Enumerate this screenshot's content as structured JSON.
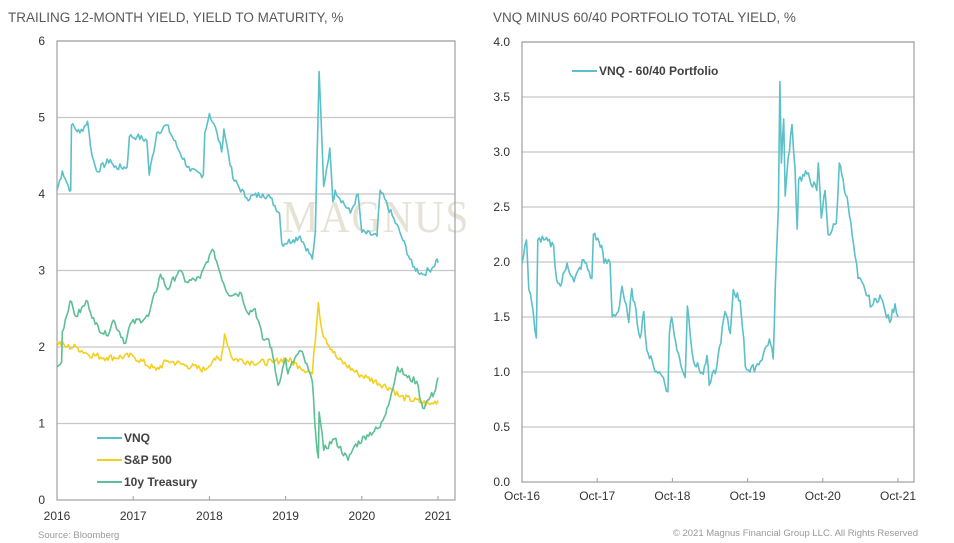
{
  "watermark": "MAGNUS",
  "source": "Source: Bloomberg",
  "copyright": "© 2021 Magnus Financial Group LLC. All Rights Reserved",
  "colors": {
    "vnq": "#5bc0c8",
    "sp500": "#f5cf1f",
    "treasury": "#5dbf94",
    "spread": "#5bc0c8",
    "grid": "#c8c8c8",
    "axis": "#a0a0a0"
  },
  "chart_data": [
    {
      "type": "line",
      "title": "TRAILING 12-MONTH YIELD, YIELD TO MATURITY, %",
      "xlabel": "",
      "ylabel": "",
      "xlim": [
        2016,
        2021.22
      ],
      "ylim": [
        0,
        6
      ],
      "xticks": [
        2016,
        2017,
        2018,
        2019,
        2020,
        2021
      ],
      "xtick_labels": [
        "2016",
        "2017",
        "2018",
        "2019",
        "2020",
        "2021"
      ],
      "yticks": [
        0,
        1,
        2,
        3,
        4,
        5,
        6
      ],
      "ytick_labels": [
        "0",
        "1",
        "2",
        "3",
        "4",
        "5",
        "6"
      ],
      "grid": true,
      "legend_position": "bottom-left",
      "series": [
        {
          "name": "VNQ",
          "color_key": "vnq",
          "x": [
            2016.0,
            2016.07,
            2016.15,
            2016.18,
            2016.19,
            2016.3,
            2016.4,
            2016.46,
            2016.52,
            2016.7,
            2016.75,
            2016.92,
            2016.95,
            2017.05,
            2017.18,
            2017.21,
            2017.31,
            2017.44,
            2017.61,
            2017.75,
            2017.92,
            2017.94,
            2018.0,
            2018.1,
            2018.16,
            2018.19,
            2018.31,
            2018.49,
            2018.7,
            2018.8,
            2018.92,
            2018.95,
            2019.1,
            2019.19,
            2019.35,
            2019.39,
            2019.44,
            2019.48,
            2019.5,
            2019.58,
            2019.62,
            2019.65,
            2019.85,
            2019.95,
            2020.0,
            2020.2,
            2020.24,
            2020.5,
            2020.67,
            2020.8,
            2020.94,
            2020.99,
            2021.0
          ],
          "y": [
            4.05,
            4.3,
            4.1,
            4.05,
            4.9,
            4.8,
            4.95,
            4.5,
            4.3,
            4.45,
            4.35,
            4.35,
            4.75,
            4.75,
            4.7,
            4.25,
            4.8,
            4.9,
            4.55,
            4.3,
            4.25,
            4.8,
            5.05,
            4.8,
            4.55,
            4.85,
            4.2,
            3.95,
            4.0,
            3.95,
            3.75,
            3.35,
            3.4,
            3.45,
            3.15,
            3.5,
            5.6,
            4.6,
            4.1,
            4.6,
            3.9,
            4.05,
            3.75,
            4.0,
            3.5,
            3.45,
            4.05,
            3.5,
            3.05,
            2.95,
            3.05,
            3.15,
            3.1
          ]
        },
        {
          "name": "S&P 500",
          "color_key": "sp500",
          "x": [
            2016.0,
            2016.13,
            2016.25,
            2016.4,
            2016.65,
            2017.0,
            2017.3,
            2017.45,
            2017.7,
            2017.94,
            2018.06,
            2018.15,
            2018.2,
            2018.3,
            2018.57,
            2018.83,
            2019.0,
            2019.18,
            2019.35,
            2019.43,
            2019.48,
            2019.53,
            2019.68,
            2019.95,
            2020.07,
            2020.4,
            2020.5,
            2020.78,
            2020.9,
            2021.0
          ],
          "y": [
            2.07,
            2.0,
            2.0,
            1.91,
            1.86,
            1.88,
            1.7,
            1.82,
            1.76,
            1.7,
            1.85,
            1.82,
            2.17,
            1.85,
            1.8,
            1.8,
            1.85,
            1.75,
            1.65,
            2.58,
            2.2,
            2.1,
            1.85,
            1.65,
            1.6,
            1.45,
            1.35,
            1.28,
            1.25,
            1.3
          ]
        },
        {
          "name": "10y Treasury",
          "color_key": "treasury",
          "x": [
            2016.0,
            2016.06,
            2016.07,
            2016.17,
            2016.25,
            2016.4,
            2016.5,
            2016.65,
            2016.74,
            2016.9,
            2016.96,
            2017.2,
            2017.36,
            2017.45,
            2017.6,
            2017.7,
            2017.88,
            2018.0,
            2018.06,
            2018.13,
            2018.24,
            2018.42,
            2018.5,
            2018.6,
            2018.7,
            2018.78,
            2018.85,
            2018.9,
            2019.0,
            2019.03,
            2019.12,
            2019.2,
            2019.3,
            2019.35,
            2019.4,
            2019.43,
            2019.44,
            2019.5,
            2019.64,
            2019.82,
            2019.9,
            2020.07,
            2020.24,
            2020.33,
            2020.43,
            2020.47,
            2020.6,
            2020.72,
            2020.8,
            2020.9,
            2020.95,
            2021.0
          ],
          "y": [
            1.74,
            1.8,
            2.2,
            2.6,
            2.4,
            2.6,
            2.3,
            2.15,
            2.35,
            2.05,
            2.3,
            2.4,
            2.95,
            2.75,
            3.0,
            2.85,
            2.9,
            3.2,
            3.25,
            3.0,
            2.7,
            2.7,
            2.45,
            2.5,
            2.1,
            2.1,
            1.8,
            1.5,
            1.85,
            1.65,
            1.85,
            1.95,
            1.7,
            1.55,
            0.8,
            0.55,
            1.15,
            0.65,
            0.8,
            0.52,
            0.7,
            0.85,
            0.95,
            1.2,
            1.55,
            1.74,
            1.6,
            1.55,
            1.2,
            1.35,
            1.4,
            1.6
          ]
        }
      ]
    },
    {
      "type": "line",
      "title": "VNQ MINUS 60/40 PORTFOLIO TOTAL YIELD, %",
      "xlabel": "",
      "ylabel": "",
      "xlim": [
        2016.75,
        2021.96
      ],
      "ylim": [
        0,
        4
      ],
      "xticks": [
        2016.75,
        2017.75,
        2018.75,
        2019.75,
        2020.75,
        2021.75
      ],
      "xtick_labels": [
        "Oct-16",
        "Oct-17",
        "Oct-18",
        "Oct-19",
        "Oct-20",
        "Oct-21"
      ],
      "yticks": [
        0,
        0.5,
        1,
        1.5,
        2,
        2.5,
        3,
        3.5,
        4
      ],
      "ytick_labels": [
        "0.0",
        "0.5",
        "1.0",
        "1.5",
        "2.0",
        "2.5",
        "3.0",
        "3.5",
        "4.0"
      ],
      "grid": true,
      "legend_position": "top-left",
      "series": [
        {
          "name": "VNQ - 60/40 Portfolio",
          "color_key": "spread",
          "x": [
            2016.75,
            2016.81,
            2016.84,
            2016.88,
            2016.94,
            2016.96,
            2017.04,
            2017.17,
            2017.21,
            2017.26,
            2017.35,
            2017.44,
            2017.57,
            2017.68,
            2017.7,
            2017.81,
            2017.84,
            2017.92,
            2017.95,
            2018.03,
            2018.08,
            2018.17,
            2018.21,
            2018.32,
            2018.37,
            2018.41,
            2018.5,
            2018.63,
            2018.69,
            2018.71,
            2018.74,
            2018.81,
            2018.92,
            2018.95,
            2019.03,
            2019.16,
            2019.21,
            2019.24,
            2019.34,
            2019.45,
            2019.52,
            2019.56,
            2019.65,
            2019.7,
            2019.72,
            2019.78,
            2019.92,
            2020.04,
            2020.09,
            2020.12,
            2020.16,
            2020.18,
            2020.2,
            2020.23,
            2020.25,
            2020.29,
            2020.34,
            2020.38,
            2020.41,
            2020.43,
            2020.54,
            2020.67,
            2020.69,
            2020.73,
            2020.78,
            2020.82,
            2020.93,
            2020.97,
            2021.02,
            2021.09,
            2021.14,
            2021.18,
            2021.22,
            2021.31,
            2021.4,
            2021.51,
            2021.58,
            2021.64,
            2021.71,
            2021.75
          ],
          "y": [
            1.99,
            2.2,
            1.75,
            1.63,
            1.31,
            2.2,
            2.2,
            2.15,
            1.84,
            1.78,
            1.99,
            1.82,
            2.02,
            1.85,
            2.25,
            2.15,
            1.99,
            2.0,
            1.5,
            1.55,
            1.78,
            1.45,
            1.76,
            1.31,
            1.55,
            1.2,
            1.05,
            0.95,
            0.82,
            1.35,
            1.5,
            1.2,
            0.95,
            1.6,
            1.1,
            0.98,
            1.15,
            0.88,
            1.05,
            1.55,
            1.35,
            1.75,
            1.65,
            1.3,
            1.05,
            1.0,
            1.1,
            1.3,
            1.12,
            1.8,
            2.5,
            3.64,
            2.9,
            3.3,
            2.6,
            2.95,
            3.25,
            2.85,
            2.3,
            2.75,
            2.8,
            2.65,
            2.9,
            2.4,
            2.65,
            2.25,
            2.35,
            2.9,
            2.75,
            2.5,
            2.25,
            2.05,
            1.85,
            1.75,
            1.6,
            1.7,
            1.55,
            1.45,
            1.62,
            1.5
          ]
        }
      ]
    }
  ]
}
